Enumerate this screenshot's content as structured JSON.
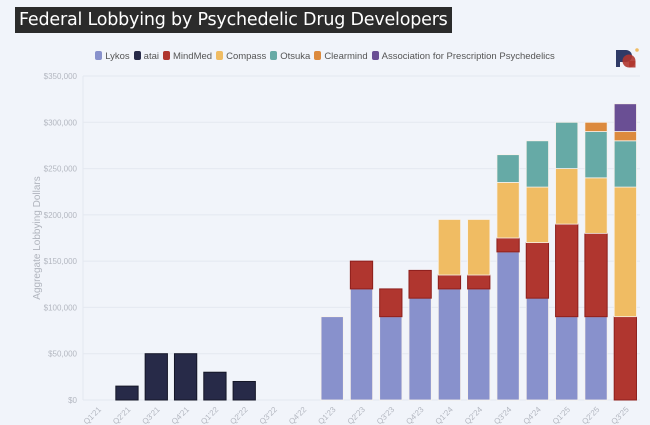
{
  "chart_data": {
    "type": "bar",
    "stacked": true,
    "title": "Federal Lobbying by Psychedelic Drug Developers",
    "xlabel": "",
    "ylabel": "Aggregate Lobbying Dollars",
    "ylim": [
      0,
      350000
    ],
    "yticks": [
      0,
      50000,
      100000,
      150000,
      200000,
      250000,
      300000,
      350000
    ],
    "ytick_labels": [
      "$0",
      "$50,000",
      "$100,000",
      "$150,000",
      "$200,000",
      "$250,000",
      "$300,000",
      "$350,000"
    ],
    "grid": true,
    "legend_position": "top-center",
    "categories": [
      "Q1'21",
      "Q2'21",
      "Q3'21",
      "Q4'21",
      "Q1'22",
      "Q2'22",
      "Q3'22",
      "Q4'22",
      "Q1'23",
      "Q2'23",
      "Q3'23",
      "Q4'23",
      "Q1'24",
      "Q2'24",
      "Q3'24",
      "Q4'24",
      "Q1'25",
      "Q2'25",
      "Q3'25"
    ],
    "series": [
      {
        "name": "Lykos",
        "color": "#8891cc",
        "values": [
          0,
          0,
          0,
          0,
          0,
          0,
          0,
          0,
          90000,
          120000,
          90000,
          110000,
          120000,
          120000,
          160000,
          110000,
          90000,
          90000,
          0
        ]
      },
      {
        "name": "atai",
        "color": "#272a48",
        "values": [
          0,
          15000,
          50000,
          50000,
          30000,
          20000,
          0,
          0,
          0,
          0,
          0,
          0,
          0,
          0,
          0,
          0,
          0,
          0,
          0
        ]
      },
      {
        "name": "MindMed",
        "color": "#b0362f",
        "values": [
          0,
          0,
          0,
          0,
          0,
          0,
          0,
          0,
          0,
          30000,
          30000,
          30000,
          15000,
          15000,
          15000,
          60000,
          100000,
          90000,
          90000
        ]
      },
      {
        "name": "Compass",
        "color": "#f0bc63",
        "values": [
          0,
          0,
          0,
          0,
          0,
          0,
          0,
          0,
          0,
          0,
          0,
          0,
          60000,
          60000,
          60000,
          60000,
          60000,
          60000,
          140000
        ]
      },
      {
        "name": "Otsuka",
        "color": "#66aaa6",
        "values": [
          0,
          0,
          0,
          0,
          0,
          0,
          0,
          0,
          0,
          0,
          0,
          0,
          0,
          0,
          30000,
          50000,
          50000,
          50000,
          50000
        ]
      },
      {
        "name": "Clearmind",
        "color": "#dc8a3e",
        "values": [
          0,
          0,
          0,
          0,
          0,
          0,
          0,
          0,
          0,
          0,
          0,
          0,
          0,
          0,
          0,
          0,
          0,
          10000,
          10000
        ]
      },
      {
        "name": "Association for Prescription Psychedelics",
        "color": "#6a4f94",
        "values": [
          0,
          0,
          0,
          0,
          0,
          0,
          0,
          0,
          0,
          0,
          0,
          0,
          0,
          0,
          0,
          0,
          0,
          0,
          30000
        ]
      }
    ]
  },
  "logo": {
    "name": "logo-icon"
  }
}
